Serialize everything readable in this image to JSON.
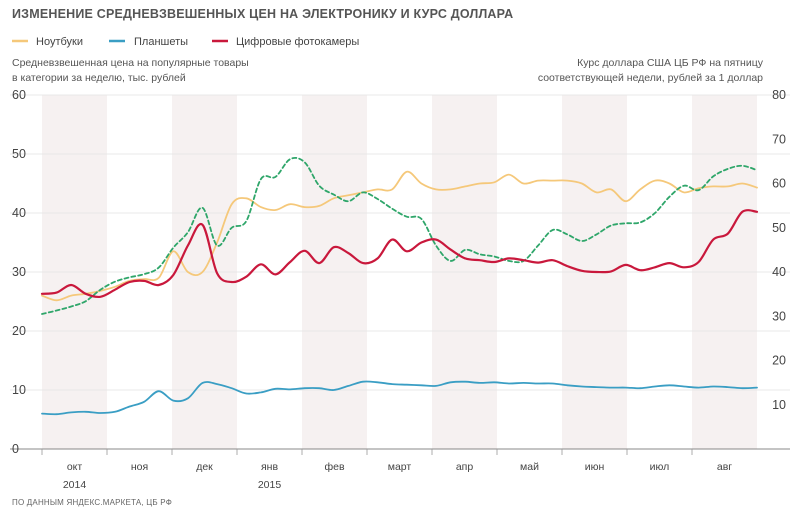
{
  "title": "ИЗМЕНЕНИЕ СРЕДНЕВЗВЕШЕННЫХ ЦЕН НА ЭЛЕКТРОНИКУ И КУРС ДОЛЛАРА",
  "legend": [
    {
      "label": "Ноутбуки",
      "color": "#f5c87a"
    },
    {
      "label": "Планшеты",
      "color": "#3a9ec4"
    },
    {
      "label": "Цифровые фотокамеры",
      "color": "#c9183c"
    }
  ],
  "left_note": [
    "Средневзвешенная цена на популярные  товары",
    "в категории за неделю, тыс. рублей"
  ],
  "right_note": [
    "Курс доллара США ЦБ РФ на пятницу",
    "соответствующей недели, рублей за 1 доллар"
  ],
  "source": "ПО ДАННЫМ ЯНДЕКС.МАРКЕТА, ЦБ РФ",
  "chart_data": {
    "type": "line",
    "x_unit": "weeks since start of October 2014",
    "months": [
      "окт",
      "ноя",
      "дек",
      "янв",
      "фев",
      "март",
      "апр",
      "май",
      "июн",
      "июл",
      "авг"
    ],
    "years": [
      {
        "label": "2014",
        "month_index": 0
      },
      {
        "label": "2015",
        "month_index": 3
      }
    ],
    "ylim_left": [
      0,
      60
    ],
    "yticks_left": [
      0,
      10,
      20,
      30,
      40,
      50,
      60
    ],
    "ylim_right": [
      0,
      80
    ],
    "yticks_right": [
      10,
      20,
      30,
      40,
      50,
      60,
      70,
      80
    ],
    "series": [
      {
        "name": "Ноутбуки",
        "axis": "left",
        "color": "#f5c87a",
        "dash": false,
        "x": [
          0,
          1,
          2,
          3,
          4,
          5,
          6,
          7,
          8,
          9,
          10,
          11,
          12,
          13,
          14,
          15,
          16,
          17,
          18,
          19,
          20,
          21,
          22,
          23,
          24,
          25,
          26,
          27,
          28,
          29,
          30,
          31,
          32,
          33,
          34,
          35,
          36,
          37,
          38,
          39,
          40,
          41,
          42,
          43,
          44,
          45,
          46,
          47,
          48,
          49
        ],
        "values": [
          26,
          25.2,
          26,
          26.3,
          26.8,
          27.5,
          28.5,
          28.8,
          29,
          33.5,
          30,
          30,
          35,
          41.5,
          42.5,
          41,
          40.5,
          41.5,
          41,
          41.2,
          42.5,
          43,
          43.5,
          44,
          44,
          47,
          45,
          44,
          44,
          44.5,
          45,
          45.2,
          46.5,
          45,
          45.5,
          45.5,
          45.5,
          45,
          43.5,
          44,
          42,
          44,
          45.5,
          45,
          43.5,
          44.2,
          44.5,
          44.5,
          45,
          44.3
        ]
      },
      {
        "name": "Планшеты",
        "axis": "left",
        "color": "#3a9ec4",
        "dash": false,
        "x": [
          0,
          1,
          2,
          3,
          4,
          5,
          6,
          7,
          8,
          9,
          10,
          11,
          12,
          13,
          14,
          15,
          16,
          17,
          18,
          19,
          20,
          21,
          22,
          23,
          24,
          25,
          26,
          27,
          28,
          29,
          30,
          31,
          32,
          33,
          34,
          35,
          36,
          37,
          38,
          39,
          40,
          41,
          42,
          43,
          44,
          45,
          46,
          47,
          48,
          49
        ],
        "values": [
          6,
          5.9,
          6.2,
          6.3,
          6.1,
          6.3,
          7.2,
          8,
          9.8,
          8.2,
          8.6,
          11.2,
          11,
          10.3,
          9.4,
          9.6,
          10.2,
          10.1,
          10.3,
          10.3,
          10,
          10.7,
          11.4,
          11.3,
          11,
          10.9,
          10.8,
          10.7,
          11.3,
          11.4,
          11.2,
          11.3,
          11.1,
          11.2,
          11.1,
          11.1,
          10.8,
          10.6,
          10.5,
          10.4,
          10.4,
          10.3,
          10.6,
          10.8,
          10.6,
          10.4,
          10.6,
          10.5,
          10.3,
          10.4
        ]
      },
      {
        "name": "Цифровые фотокамеры",
        "axis": "left",
        "color": "#c9183c",
        "dash": false,
        "x": [
          0,
          1,
          2,
          3,
          4,
          5,
          6,
          7,
          8,
          9,
          10,
          11,
          12,
          13,
          14,
          15,
          16,
          17,
          18,
          19,
          20,
          21,
          22,
          23,
          24,
          25,
          26,
          27,
          28,
          29,
          30,
          31,
          32,
          33,
          34,
          35,
          36,
          37,
          38,
          39,
          40,
          41,
          42,
          43,
          44,
          45,
          46,
          47,
          48,
          49
        ],
        "values": [
          26.3,
          26.5,
          27.8,
          26.3,
          25.8,
          27,
          28.3,
          28.5,
          27.8,
          29.5,
          34.5,
          38,
          29.8,
          28.3,
          29.2,
          31.3,
          29.6,
          31.7,
          33.6,
          31.5,
          34.2,
          33.2,
          31.5,
          32.3,
          35.5,
          33.5,
          35,
          35.5,
          33.8,
          32.3,
          32,
          31.7,
          32.3,
          32,
          31.6,
          32,
          31,
          30.2,
          30,
          30.1,
          31.2,
          30.3,
          30.8,
          31.5,
          30.8,
          31.7,
          35.5,
          36.5,
          40.2,
          40.2
        ]
      },
      {
        "name": "Курс доллара США ЦБ РФ",
        "axis": "right",
        "color": "#2fa66a",
        "dash": true,
        "x": [
          0,
          1,
          2,
          3,
          4,
          5,
          6,
          7,
          8,
          9,
          10,
          11,
          12,
          13,
          14,
          15,
          16,
          17,
          18,
          19,
          20,
          21,
          22,
          23,
          24,
          25,
          26,
          27,
          28,
          29,
          30,
          31,
          32,
          33,
          34,
          35,
          36,
          37,
          38,
          39,
          40,
          41,
          42,
          43,
          44,
          45,
          46,
          47,
          48,
          49
        ],
        "values": [
          30.5,
          31.3,
          32.2,
          33.4,
          36,
          37.8,
          38.8,
          39.5,
          41,
          45.5,
          49,
          54.5,
          46,
          50,
          51.5,
          61,
          61.5,
          65.5,
          64.8,
          59.5,
          57.5,
          56,
          58,
          56.5,
          54.3,
          52.5,
          52,
          46,
          42.5,
          45,
          44,
          43.5,
          42.5,
          42.5,
          46,
          49.5,
          48.5,
          47,
          48.5,
          50.5,
          51,
          51.2,
          53.3,
          57,
          59.5,
          58.5,
          61.6,
          63.3,
          64,
          63
        ]
      }
    ]
  }
}
